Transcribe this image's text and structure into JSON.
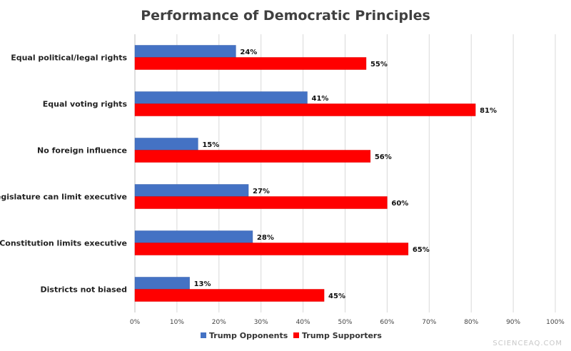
{
  "chart_data": {
    "type": "bar",
    "orientation": "horizontal",
    "title": "Performance of Democratic Principles",
    "categories": [
      "Equal political/legal rights",
      "Equal voting rights",
      "No foreign influence",
      "Legislature can limit executive",
      "Constitution limits executive",
      "Districts not biased"
    ],
    "series": [
      {
        "name": "Trump Opponents",
        "color": "#4472C4",
        "values": [
          24,
          41,
          15,
          27,
          28,
          13
        ]
      },
      {
        "name": "Trump Supporters",
        "color": "#FF0000",
        "values": [
          55,
          81,
          56,
          60,
          65,
          45
        ]
      }
    ],
    "xlim": [
      0,
      100
    ],
    "xticks": [
      0,
      10,
      20,
      30,
      40,
      50,
      60,
      70,
      80,
      90,
      100
    ],
    "xtick_format": "%",
    "grid": true,
    "legend_position": "bottom"
  },
  "watermark": "SCIENCEAQ.COM"
}
